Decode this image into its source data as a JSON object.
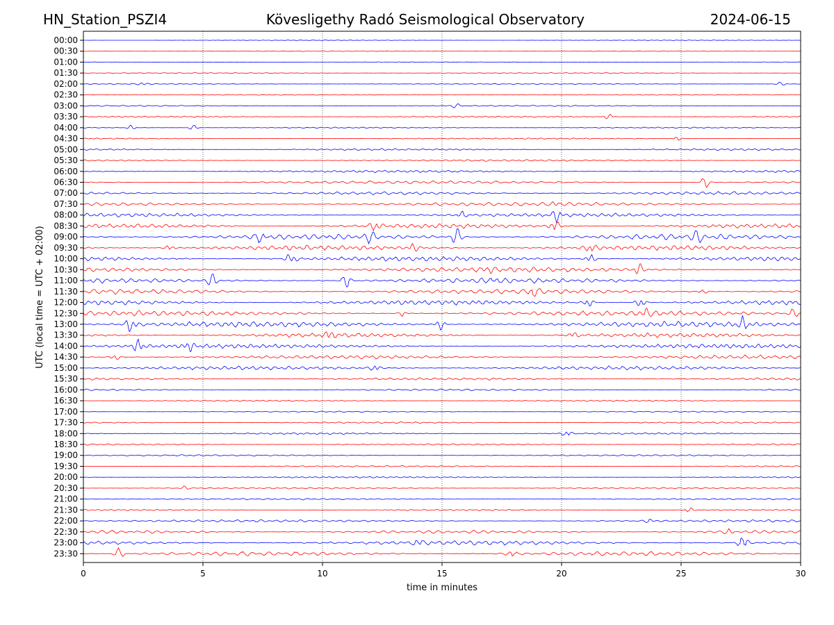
{
  "header": {
    "station": "HN_Station_PSZI4",
    "observatory": "Kövesligethy Radó Seismological Observatory",
    "date": "2024-06-15"
  },
  "chart_data": {
    "type": "line",
    "title": "Kövesligethy Radó Seismological Observatory",
    "xlabel": "time in minutes",
    "ylabel": "UTC (local time = UTC + 02:00)",
    "xlim": [
      0,
      30
    ],
    "x_ticks": [
      0,
      5,
      10,
      15,
      20,
      25,
      30
    ],
    "x_tick_labels": [
      "0",
      "5",
      "10",
      "15",
      "20",
      "25",
      "30"
    ],
    "vertical_gridlines_at": [
      5,
      10,
      15,
      20,
      25
    ],
    "grid": "vertical dotted",
    "row_labels": [
      "00:00",
      "00:30",
      "01:00",
      "01:30",
      "02:00",
      "02:30",
      "03:00",
      "03:30",
      "04:00",
      "04:30",
      "05:00",
      "05:30",
      "06:00",
      "06:30",
      "07:00",
      "07:30",
      "08:00",
      "08:30",
      "09:00",
      "09:30",
      "10:00",
      "10:30",
      "11:00",
      "11:30",
      "12:00",
      "12:30",
      "13:00",
      "13:30",
      "14:00",
      "14:30",
      "15:00",
      "15:30",
      "16:00",
      "16:30",
      "17:00",
      "17:30",
      "18:00",
      "18:30",
      "19:00",
      "19:30",
      "20:00",
      "20:30",
      "21:00",
      "21:30",
      "22:00",
      "22:30",
      "23:00",
      "23:30"
    ],
    "colors": [
      "#0000ff",
      "#ff0000"
    ],
    "amplitude_levels": [
      0.5,
      0.5,
      0.5,
      0.8,
      0.8,
      0.5,
      1,
      1,
      1,
      1,
      1.5,
      1.5,
      2,
      2.5,
      2.5,
      3,
      3,
      3.5,
      4.5,
      4,
      4,
      4,
      4,
      4,
      4,
      4,
      4.5,
      3.5,
      3.5,
      3,
      3,
      2,
      1.5,
      1.2,
      1,
      1.2,
      1.5,
      1.2,
      1.2,
      1.2,
      1.2,
      1.2,
      1.2,
      1.2,
      2,
      2.5,
      3.5,
      3.5
    ],
    "events": [
      {
        "row": 4,
        "minute": 2.5,
        "amp": 3
      },
      {
        "row": 4,
        "minute": 29.2,
        "amp": 3
      },
      {
        "row": 6,
        "minute": 15.6,
        "amp": 3
      },
      {
        "row": 7,
        "minute": 22.0,
        "amp": 4
      },
      {
        "row": 8,
        "minute": 2.0,
        "amp": 3
      },
      {
        "row": 8,
        "minute": 4.6,
        "amp": 4
      },
      {
        "row": 9,
        "minute": 24.8,
        "amp": 3
      },
      {
        "row": 13,
        "minute": 26.0,
        "amp": 8
      },
      {
        "row": 15,
        "minute": 19.8,
        "amp": 6
      },
      {
        "row": 16,
        "minute": 19.8,
        "amp": 8
      },
      {
        "row": 16,
        "minute": 15.8,
        "amp": 5
      },
      {
        "row": 17,
        "minute": 12.2,
        "amp": 9
      },
      {
        "row": 17,
        "minute": 19.7,
        "amp": 10
      },
      {
        "row": 18,
        "minute": 15.6,
        "amp": 11
      },
      {
        "row": 18,
        "minute": 12.0,
        "amp": 7
      },
      {
        "row": 18,
        "minute": 7.4,
        "amp": 7
      },
      {
        "row": 18,
        "minute": 25.7,
        "amp": 7
      },
      {
        "row": 19,
        "minute": 21.2,
        "amp": 8
      },
      {
        "row": 19,
        "minute": 3.6,
        "amp": 6
      },
      {
        "row": 19,
        "minute": 13.8,
        "amp": 6
      },
      {
        "row": 20,
        "minute": 8.7,
        "amp": 12
      },
      {
        "row": 20,
        "minute": 21.2,
        "amp": 8
      },
      {
        "row": 21,
        "minute": 23.2,
        "amp": 9
      },
      {
        "row": 21,
        "minute": 16.9,
        "amp": 7
      },
      {
        "row": 22,
        "minute": 5.4,
        "amp": 9
      },
      {
        "row": 22,
        "minute": 11.0,
        "amp": 9
      },
      {
        "row": 22,
        "minute": 17.2,
        "amp": 9
      },
      {
        "row": 23,
        "minute": 18.8,
        "amp": 9
      },
      {
        "row": 23,
        "minute": 25.9,
        "amp": 6
      },
      {
        "row": 24,
        "minute": 21.1,
        "amp": 8
      },
      {
        "row": 24,
        "minute": 23.3,
        "amp": 8
      },
      {
        "row": 25,
        "minute": 23.5,
        "amp": 9
      },
      {
        "row": 25,
        "minute": 13.4,
        "amp": 6
      },
      {
        "row": 25,
        "minute": 29.7,
        "amp": 6
      },
      {
        "row": 26,
        "minute": 2.0,
        "amp": 13
      },
      {
        "row": 26,
        "minute": 14.9,
        "amp": 9
      },
      {
        "row": 26,
        "minute": 27.6,
        "amp": 8
      },
      {
        "row": 27,
        "minute": 10.3,
        "amp": 5
      },
      {
        "row": 27,
        "minute": 20.5,
        "amp": 5
      },
      {
        "row": 28,
        "minute": 2.3,
        "amp": 10
      },
      {
        "row": 28,
        "minute": 4.4,
        "amp": 7
      },
      {
        "row": 29,
        "minute": 1.3,
        "amp": 6
      },
      {
        "row": 30,
        "minute": 12.2,
        "amp": 6
      },
      {
        "row": 36,
        "minute": 20.2,
        "amp": 5
      },
      {
        "row": 41,
        "minute": 4.2,
        "amp": 3
      },
      {
        "row": 43,
        "minute": 25.3,
        "amp": 4
      },
      {
        "row": 44,
        "minute": 23.7,
        "amp": 4
      },
      {
        "row": 45,
        "minute": 27.0,
        "amp": 9
      },
      {
        "row": 46,
        "minute": 27.6,
        "amp": 14
      },
      {
        "row": 46,
        "minute": 14.0,
        "amp": 6
      },
      {
        "row": 47,
        "minute": 1.5,
        "amp": 7
      },
      {
        "row": 47,
        "minute": 17.9,
        "amp": 8
      }
    ]
  }
}
